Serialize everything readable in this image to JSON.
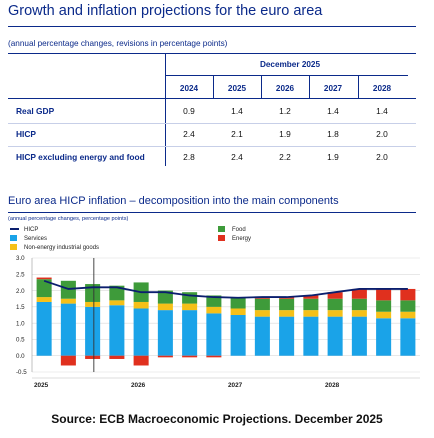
{
  "page": {
    "title": "Growth and inflation projections for the euro area",
    "source": "Source: ECB Macroeconomic Projections. December 2025"
  },
  "table": {
    "subtitle": "(annual percentage changes, revisions in percentage points)",
    "group_header": "December 2025",
    "years": [
      "2024",
      "2025",
      "2026",
      "2027",
      "2028"
    ],
    "rows": [
      {
        "label": "Real GDP",
        "values": [
          "0.9",
          "1.4",
          "1.2",
          "1.4",
          "1.4"
        ]
      },
      {
        "label": "HICP",
        "values": [
          "2.4",
          "2.1",
          "1.9",
          "1.8",
          "2.0"
        ]
      },
      {
        "label": "HICP excluding energy and food",
        "values": [
          "2.8",
          "2.4",
          "2.2",
          "1.9",
          "2.0"
        ]
      }
    ]
  },
  "chart": {
    "title": "Euro area HICP inflation – decomposition into the main components",
    "subtitle": "(annual percentage changes, percentage points)"
  },
  "colors": {
    "hicp": "#0b1f6e",
    "services": "#1aa3e8",
    "neig": "#f5c018",
    "food": "#3e9b3a",
    "energy": "#e0301e",
    "text": "#0b2a8a"
  },
  "chart_data": {
    "type": "bar",
    "stacked": true,
    "categories": [
      "2025 Q1",
      "2025 Q2",
      "2025 Q3",
      "2025 Q4",
      "2026 Q1",
      "2026 Q2",
      "2026 Q3",
      "2026 Q4",
      "2027 Q1",
      "2027 Q2",
      "2027 Q3",
      "2027 Q4",
      "2028 Q1",
      "2028 Q2",
      "2028 Q3",
      "2028 Q4"
    ],
    "x_tick_labels": [
      "2025",
      "2026",
      "2027",
      "2028"
    ],
    "ylim": [
      -0.5,
      3.0
    ],
    "yticks": [
      "3.0",
      "2.5",
      "2.0",
      "1.5",
      "1.0",
      "0.5",
      "0.0",
      "-0.5"
    ],
    "grid": true,
    "legend": "top-left",
    "series": [
      {
        "name": "Services",
        "key": "services",
        "values": [
          1.65,
          1.6,
          1.5,
          1.55,
          1.45,
          1.4,
          1.4,
          1.3,
          1.25,
          1.2,
          1.2,
          1.2,
          1.2,
          1.2,
          1.15,
          1.15
        ]
      },
      {
        "name": "Non-energy industrial goods",
        "key": "neig",
        "values": [
          0.15,
          0.15,
          0.15,
          0.15,
          0.2,
          0.2,
          0.2,
          0.2,
          0.2,
          0.2,
          0.2,
          0.2,
          0.2,
          0.2,
          0.2,
          0.2
        ]
      },
      {
        "name": "Food",
        "key": "food",
        "values": [
          0.55,
          0.55,
          0.55,
          0.45,
          0.6,
          0.4,
          0.35,
          0.35,
          0.35,
          0.35,
          0.35,
          0.35,
          0.35,
          0.35,
          0.35,
          0.35
        ]
      },
      {
        "name": "Energy",
        "key": "energy",
        "values": [
          0.05,
          -0.3,
          -0.1,
          -0.1,
          -0.3,
          -0.05,
          -0.05,
          -0.05,
          0.0,
          0.05,
          0.05,
          0.1,
          0.2,
          0.3,
          0.35,
          0.35
        ]
      },
      {
        "name": "HICP",
        "key": "hicp",
        "type": "line",
        "values": [
          2.3,
          2.05,
          2.1,
          2.1,
          1.95,
          1.95,
          1.85,
          1.8,
          1.78,
          1.8,
          1.8,
          1.85,
          1.95,
          2.05,
          2.05,
          2.05
        ]
      }
    ],
    "projection_start_index": 3
  }
}
